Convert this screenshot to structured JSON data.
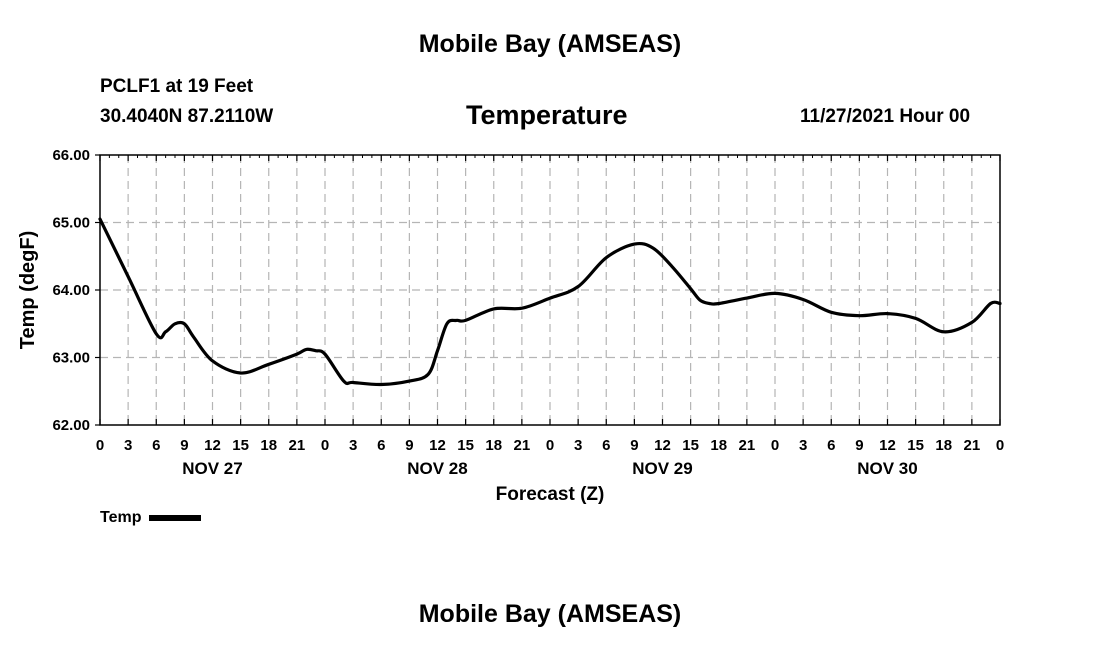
{
  "header": {
    "title": "Mobile Bay (AMSEAS)",
    "station": "PCLF1 at 19 Feet",
    "coords": "30.4040N  87.2110W",
    "date": "11/27/2021 Hour 00"
  },
  "footer": {
    "title": "Mobile Bay (AMSEAS)"
  },
  "chart_data": {
    "type": "line",
    "title": "Temperature",
    "xlabel": "Forecast (Z)",
    "ylabel": "Temp (degF)",
    "ylim": [
      62.0,
      66.0
    ],
    "yticks": [
      "62.00",
      "63.00",
      "64.00",
      "65.00",
      "66.00"
    ],
    "xlim_hours": [
      0,
      96
    ],
    "xticks": [
      "0",
      "3",
      "6",
      "9",
      "12",
      "15",
      "18",
      "21",
      "0",
      "3",
      "6",
      "9",
      "12",
      "15",
      "18",
      "21",
      "0",
      "3",
      "6",
      "9",
      "12",
      "15",
      "18",
      "21",
      "0",
      "3",
      "6",
      "9",
      "12",
      "15",
      "18",
      "21",
      "0"
    ],
    "day_labels": [
      "NOV 27",
      "NOV 28",
      "NOV 29",
      "NOV 30"
    ],
    "grid": true,
    "legend": "bottom-left",
    "series": [
      {
        "name": "Temp",
        "color": "#000000",
        "x": [
          0,
          3,
          6,
          7,
          8,
          9,
          10,
          12,
          15,
          18,
          21,
          22,
          23,
          24,
          26,
          27,
          30,
          33,
          35,
          36,
          37,
          38,
          39,
          42,
          45,
          48,
          51,
          54,
          57,
          59,
          61,
          63,
          64,
          65,
          66,
          69,
          72,
          75,
          78,
          81,
          84,
          87,
          90,
          93,
          95,
          96
        ],
        "values": [
          65.05,
          64.2,
          63.35,
          63.38,
          63.5,
          63.5,
          63.3,
          62.95,
          62.77,
          62.9,
          63.05,
          63.12,
          63.1,
          63.05,
          62.65,
          62.63,
          62.6,
          62.65,
          62.75,
          63.1,
          63.5,
          63.55,
          63.55,
          63.72,
          63.73,
          63.88,
          64.05,
          64.48,
          64.68,
          64.62,
          64.35,
          64.02,
          63.85,
          63.8,
          63.8,
          63.88,
          63.95,
          63.86,
          63.67,
          63.62,
          63.65,
          63.58,
          63.38,
          63.52,
          63.8,
          63.8
        ]
      }
    ]
  }
}
